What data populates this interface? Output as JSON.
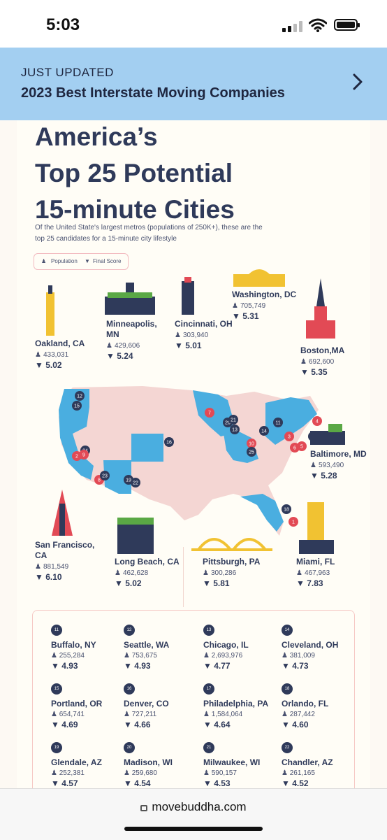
{
  "status": {
    "time": "5:03"
  },
  "banner": {
    "kicker": "JUST UPDATED",
    "title": "2023 Best Interstate Moving Companies"
  },
  "infographic": {
    "title_lines": [
      "America’s",
      "Top 25 Potential",
      "15-minute Cities"
    ],
    "subtitle": "Of the United State's largest metros (populations of 250K+), these are the top 25 candidates for a 15-minute city lifestyle",
    "legend": {
      "population": "Population",
      "score": "Final Score"
    },
    "top_cities": [
      {
        "name": "Oakland, CA",
        "population": "433,031",
        "score": "5.02"
      },
      {
        "name": "Minneapolis, MN",
        "population": "429,606",
        "score": "5.24"
      },
      {
        "name": "Cincinnati, OH",
        "population": "303,940",
        "score": "5.01"
      },
      {
        "name": "Washington, DC",
        "population": "705,749",
        "score": "5.31"
      },
      {
        "name": "Boston,MA",
        "population": "692,600",
        "score": "5.35"
      },
      {
        "name": "Baltimore, MD",
        "population": "593,490",
        "score": "5.28"
      },
      {
        "name": "San Francisco, CA",
        "population": "881,549",
        "score": "6.10"
      },
      {
        "name": "Long Beach, CA",
        "population": "462,628",
        "score": "5.02"
      },
      {
        "name": "Pittsburgh, PA",
        "population": "300,286",
        "score": "5.81"
      },
      {
        "name": "Miami, FL",
        "population": "467,963",
        "score": "7.83"
      }
    ],
    "map_markers": [
      "12",
      "15",
      "24",
      "2",
      "9",
      "8",
      "23",
      "19",
      "22",
      "16",
      "7",
      "20",
      "21",
      "13",
      "10",
      "25",
      "14",
      "11",
      "3",
      "6",
      "5",
      "17",
      "4",
      "18",
      "1"
    ],
    "grid": [
      {
        "rank": "11",
        "name": "Buffalo, NY",
        "population": "255,284",
        "score": "4.93"
      },
      {
        "rank": "12",
        "name": "Seattle, WA",
        "population": "753,675",
        "score": "4.93"
      },
      {
        "rank": "13",
        "name": "Chicago, IL",
        "population": "2,693,976",
        "score": "4.77"
      },
      {
        "rank": "14",
        "name": "Cleveland, OH",
        "population": "381,009",
        "score": "4.73"
      },
      {
        "rank": "15",
        "name": "Portland, OR",
        "population": "654,741",
        "score": "4.69"
      },
      {
        "rank": "16",
        "name": "Denver, CO",
        "population": "727,211",
        "score": "4.66"
      },
      {
        "rank": "17",
        "name": "Philadelphia, PA",
        "population": "1,584,064",
        "score": "4.64"
      },
      {
        "rank": "18",
        "name": "Orlando, FL",
        "population": "287,442",
        "score": "4.60"
      },
      {
        "rank": "19",
        "name": "Glendale, AZ",
        "population": "252,381",
        "score": "4.57"
      },
      {
        "rank": "20",
        "name": "Madison, WI",
        "population": "259,680",
        "score": "4.54"
      },
      {
        "rank": "21",
        "name": "Milwaukee, WI",
        "population": "590,157",
        "score": "4.53"
      },
      {
        "rank": "22",
        "name": "Chandler, AZ",
        "population": "261,165",
        "score": "4.52"
      }
    ]
  },
  "urlbar": {
    "url": "movebuddha.com"
  },
  "colors": {
    "navy": "#2f3a5a",
    "blue": "#4aaee0",
    "pink": "#f4d6d3",
    "red": "#e24a55",
    "gold": "#f1c232"
  }
}
